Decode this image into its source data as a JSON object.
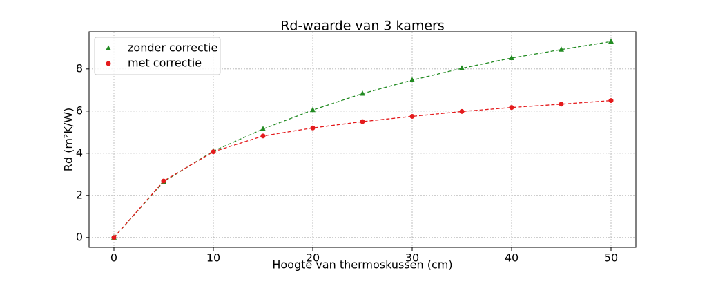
{
  "chart_data": {
    "type": "scatter",
    "title": "Rd-waarde van 3 kamers",
    "x_label": "Hoogte van thermoskussen (cm)",
    "y_label": "Rd (m²K/W)",
    "x": [
      0,
      5,
      10,
      15,
      20,
      25,
      30,
      35,
      40,
      45,
      50
    ],
    "series": [
      {
        "name": "zonder correctie",
        "color": "#228b22",
        "marker": "triangle",
        "values": [
          0,
          2.65,
          4.1,
          5.15,
          6.05,
          6.83,
          7.47,
          8.03,
          8.52,
          8.92,
          9.3
        ]
      },
      {
        "name": "met correctie",
        "color": "#e41a1c",
        "marker": "circle",
        "values": [
          0,
          2.68,
          4.07,
          4.82,
          5.2,
          5.5,
          5.75,
          5.98,
          6.17,
          6.33,
          6.5
        ]
      }
    ],
    "xlim": [
      -2.5,
      52.5
    ],
    "xticks": [
      0,
      10,
      20,
      30,
      40,
      50
    ],
    "ylim": [
      -0.465,
      9.765
    ],
    "yticks": [
      0,
      2,
      4,
      6,
      8
    ],
    "grid": true,
    "legend": "upper-left"
  }
}
